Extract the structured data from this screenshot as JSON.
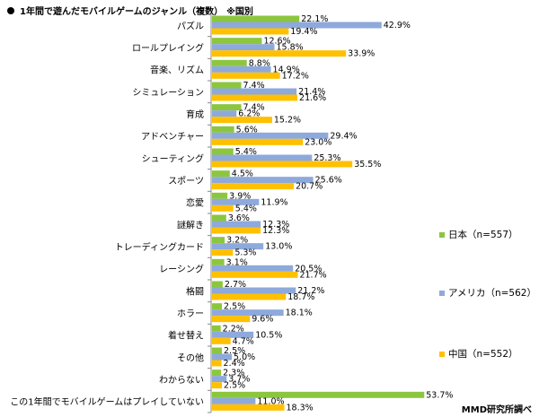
{
  "header": {
    "title": "1年間で遊んだモバイルゲームのジャンル（複数）",
    "note": "※国別"
  },
  "source": "MMD研究所調べ",
  "colors": {
    "japan": "#8cc63f",
    "usa": "#8ea9db",
    "china": "#ffc000",
    "axis": "#888888"
  },
  "chart_data": {
    "type": "bar",
    "orientation": "horizontal",
    "title": "1年間で遊んだモバイルゲームのジャンル（複数）",
    "legend_position": "right",
    "xlim": [
      0,
      60
    ],
    "categories": [
      "パズル",
      "ロールプレイング",
      "音楽、リズム",
      "シミュレーション",
      "育成",
      "アドベンチャー",
      "シューティング",
      "スポーツ",
      "恋愛",
      "謎解き",
      "トレーディングカード",
      "レーシング",
      "格闘",
      "ホラー",
      "着せ替え",
      "その他",
      "わからない",
      "この1年間でモバイルゲームはプレイしていない"
    ],
    "series": [
      {
        "name": "日本（n=557）",
        "color": "#8cc63f",
        "values": [
          22.1,
          12.6,
          8.8,
          7.4,
          7.4,
          5.6,
          5.4,
          4.5,
          3.9,
          3.6,
          3.2,
          3.1,
          2.7,
          2.5,
          2.2,
          2.5,
          2.3,
          53.7
        ]
      },
      {
        "name": "アメリカ（n=562）",
        "color": "#8ea9db",
        "values": [
          42.9,
          15.8,
          14.9,
          21.4,
          6.2,
          29.4,
          25.3,
          25.6,
          11.9,
          12.3,
          13.0,
          20.5,
          21.2,
          18.1,
          10.5,
          5.0,
          3.7,
          11.0
        ]
      },
      {
        "name": "中国（n=552）",
        "color": "#ffc000",
        "values": [
          19.4,
          33.9,
          17.2,
          21.6,
          15.2,
          23.0,
          35.5,
          20.7,
          5.4,
          12.3,
          5.3,
          21.7,
          18.7,
          9.6,
          4.7,
          2.4,
          2.5,
          18.3
        ]
      }
    ]
  }
}
